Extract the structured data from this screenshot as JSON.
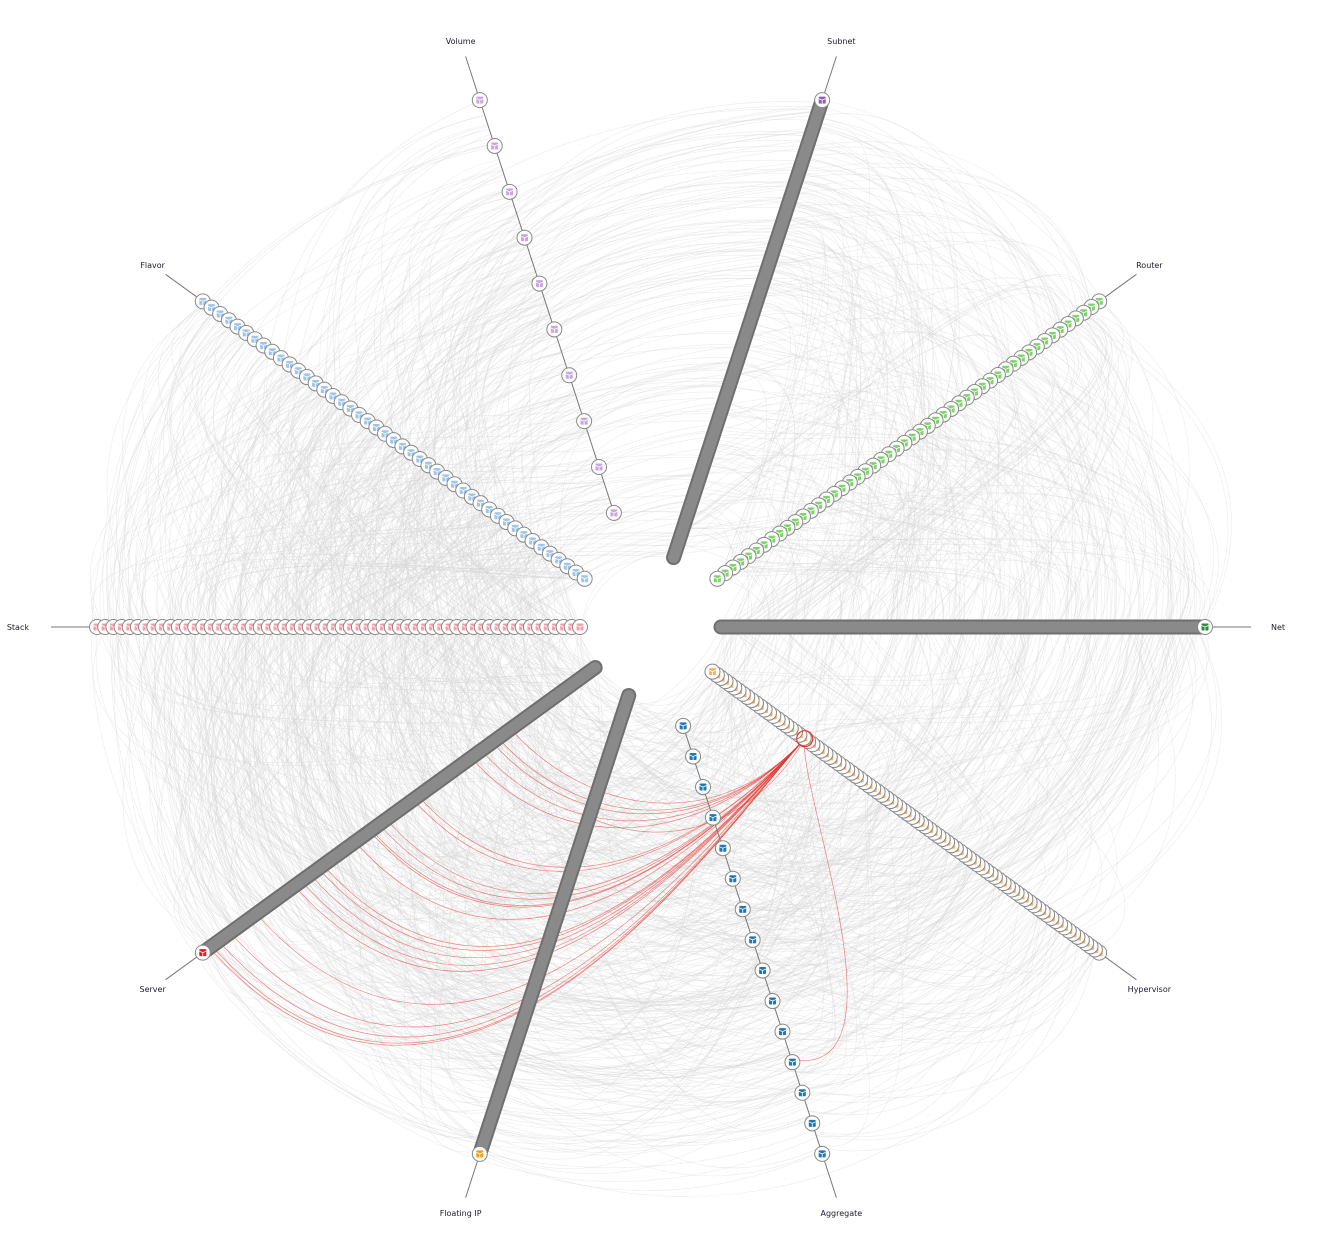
{
  "diagram": {
    "type": "hive-plot",
    "axes": [
      {
        "label": "Net",
        "node_count": 120,
        "dense": true,
        "icon": "cube-icon",
        "color": "#2e8b3a"
      },
      {
        "label": "Hypervisor",
        "node_count": 90,
        "dense": false,
        "icon": "server-rack-icon",
        "color": "#f5b26b"
      },
      {
        "label": "Aggregate",
        "node_count": 15,
        "dense": false,
        "icon": "cube-icon",
        "color": "#1f78b4"
      },
      {
        "label": "Floating IP",
        "node_count": 150,
        "dense": true,
        "icon": "cube-icon",
        "color": "#f39c12"
      },
      {
        "label": "Server",
        "node_count": 150,
        "dense": true,
        "icon": "cube-icon",
        "color": "#e31a1c"
      },
      {
        "label": "Stack",
        "node_count": 60,
        "dense": false,
        "icon": "stack-icon",
        "color": "#f4a0a8"
      },
      {
        "label": "Flavor",
        "node_count": 45,
        "dense": false,
        "icon": "cube-icon",
        "color": "#9ec5ea"
      },
      {
        "label": "Volume",
        "node_count": 10,
        "dense": false,
        "icon": "cube-icon",
        "color": "#c9a6e0"
      },
      {
        "label": "Subnet",
        "node_count": 120,
        "dense": true,
        "icon": "cube-icon",
        "color": "#8e5bb5"
      },
      {
        "label": "Router",
        "node_count": 50,
        "dense": false,
        "icon": "cube-icon",
        "color": "#7fd36b"
      }
    ],
    "edge_color": "#d4d4d4",
    "highlight_color": "#e8322b",
    "highlighted_node": {
      "axis": "Hypervisor"
    }
  }
}
